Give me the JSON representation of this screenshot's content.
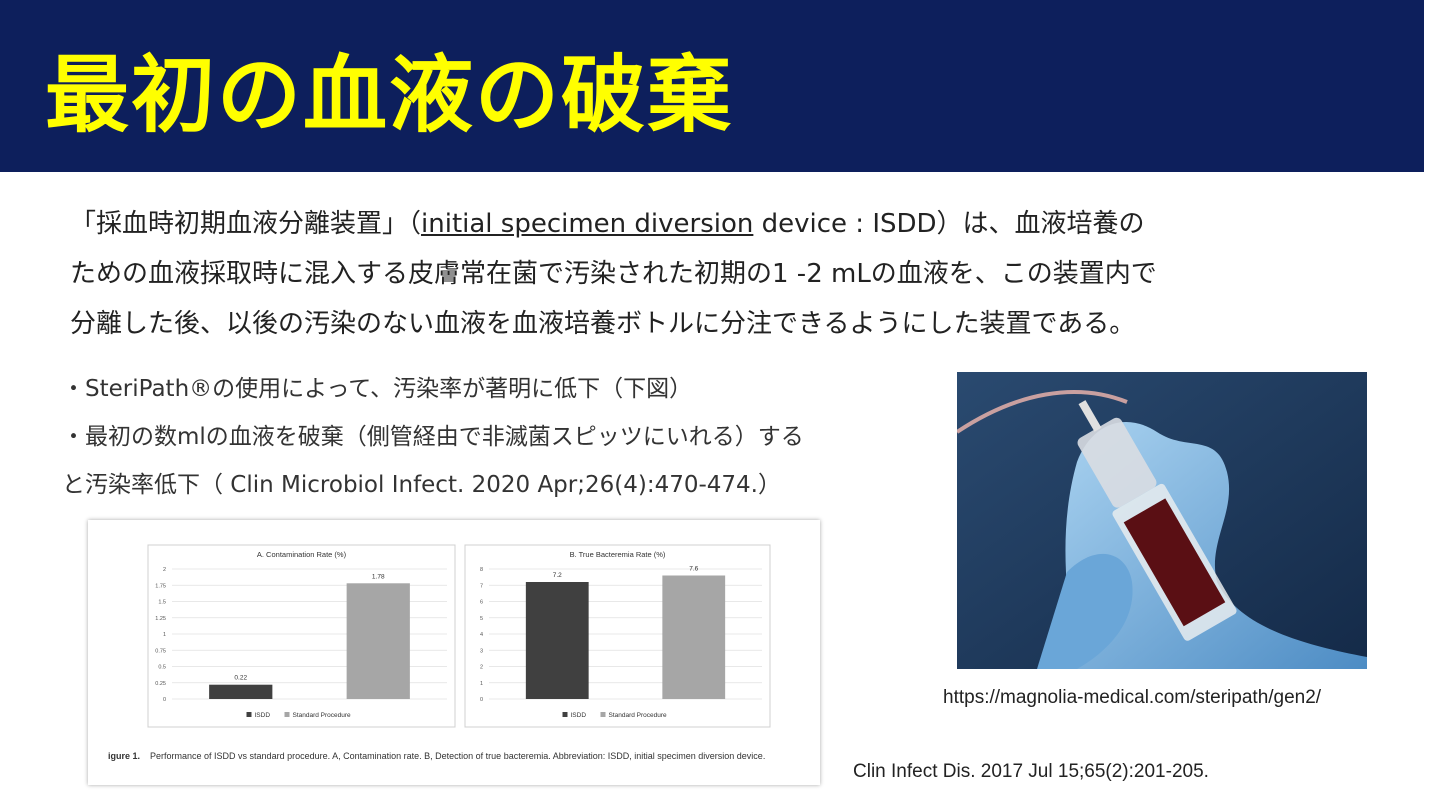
{
  "header": {
    "title": "最初の血液の破棄"
  },
  "intro": {
    "line1_start": "「採血時初期血液分離装置」（",
    "term": "initial specimen diversion",
    "line1_end": " device : ISDD）は、血液培養の",
    "line2": "ための血液採取時に混入する皮膚常在菌で汚染された初期の1 -2 mLの血液を、この装置内で",
    "line3": "分離した後、以後の汚染のない血液を血液培養ボトルに分注できるようにした装置である。"
  },
  "bullets": [
    "・SteriPath®の使用によって、汚染率が著明に低下（下図）",
    "・最初の数mlの血液を破棄（側管経由で非滅菌スピッツにいれる）する",
    "と汚染率低下（ Clin Microbiol Infect. 2020 Apr;26(4):470-474.）"
  ],
  "chart_data": [
    {
      "type": "bar",
      "title": "A. Contamination Rate (%)",
      "categories": [
        "ISDD",
        "Standard Procedure"
      ],
      "values": [
        0.22,
        1.78
      ],
      "colors": [
        "#404040",
        "#a6a6a6"
      ],
      "ylim": [
        0,
        2
      ],
      "yticks": [
        0,
        0.25,
        0.5,
        0.75,
        1,
        1.25,
        1.5,
        1.75,
        2
      ],
      "grid": true
    },
    {
      "type": "bar",
      "title": "B. True Bacteremia Rate (%)",
      "categories": [
        "ISDD",
        "Standard Procedure"
      ],
      "values": [
        7.2,
        7.6
      ],
      "colors": [
        "#404040",
        "#a6a6a6"
      ],
      "ylim": [
        0,
        8
      ],
      "yticks": [
        0,
        1,
        2,
        3,
        4,
        5,
        6,
        7,
        8
      ],
      "grid": true
    }
  ],
  "caption": {
    "label": "igure 1.",
    "text": "Performance of ISDD vs standard procedure. A, Contamination rate. B, Detection of true bacteremia. Abbreviation: ISDD, initial specimen diversion device."
  },
  "photo_source": "https://magnolia-medical.com/steripath/gen2/",
  "citation": "Clin Infect Dis. 2017 Jul 15;65(2):201-205."
}
